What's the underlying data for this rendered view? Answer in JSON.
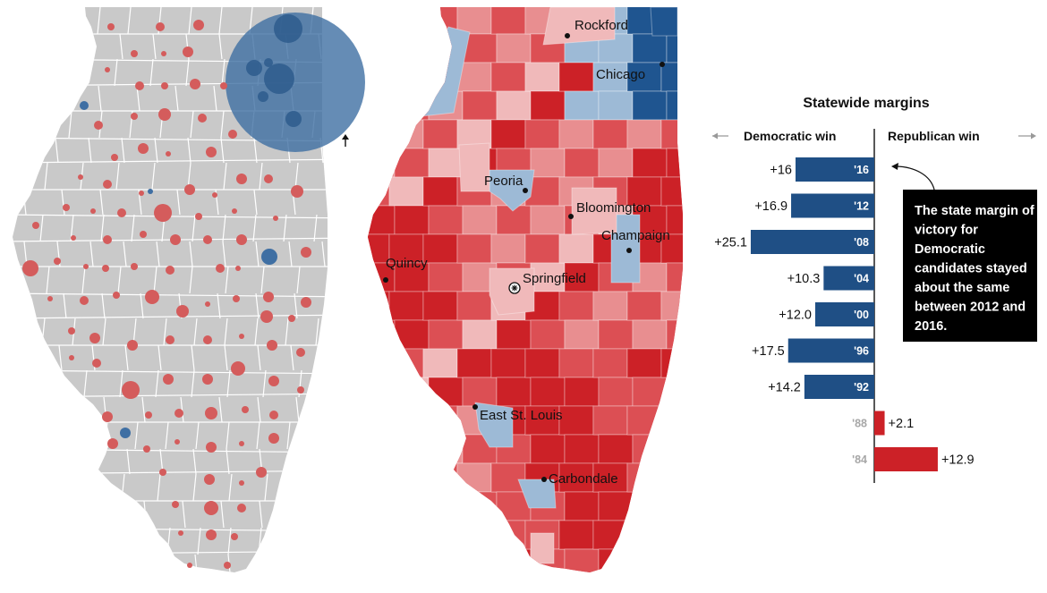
{
  "maps": {
    "bubble_map": {
      "county_fill": "#c9c9c9",
      "dem_color": "#3f6fa3",
      "rep_color": "#d45c5c"
    },
    "margin_map": {
      "shades": {
        "strong_rep": "#cc2127",
        "mid_rep": "#dc4f54",
        "light_rep": "#e88e90",
        "lightest_rep": "#f0b9ba",
        "light_dem": "#9dbad6",
        "strong_dem": "#1f5590"
      },
      "cities": [
        {
          "name": "Rockford",
          "capital": false
        },
        {
          "name": "Chicago",
          "capital": false
        },
        {
          "name": "Peoria",
          "capital": false
        },
        {
          "name": "Bloomington",
          "capital": false
        },
        {
          "name": "Champaign",
          "capital": false
        },
        {
          "name": "Quincy",
          "capital": false
        },
        {
          "name": "Springfield",
          "capital": true
        },
        {
          "name": "East St. Louis",
          "capital": false
        },
        {
          "name": "Carbondale",
          "capital": false
        }
      ]
    }
  },
  "chart_data": {
    "type": "bar",
    "title": "Statewide margins",
    "left_header": "Democratic win",
    "right_header": "Republican win",
    "categories": [
      "'16",
      "'12",
      "'08",
      "'04",
      "'00",
      "'96",
      "'92",
      "'88",
      "'84"
    ],
    "series": [
      {
        "values": [
          16,
          16.9,
          25.1,
          10.3,
          12.0,
          17.5,
          14.2,
          2.1,
          12.9
        ],
        "labels": [
          "+16",
          "+16.9",
          "+25.1",
          "+10.3",
          "+12.0",
          "+17.5",
          "+14.2",
          "+2.1",
          "+12.9"
        ],
        "winner": [
          "D",
          "D",
          "D",
          "D",
          "D",
          "D",
          "D",
          "R",
          "R"
        ]
      }
    ],
    "colors": {
      "D": "#1f4f85",
      "R": "#cc2127",
      "year_dem": "#ffffff",
      "year_rep": "#a7a7a7"
    },
    "annotation": "The state margin of victory for Democratic candidates stayed about the same between 2012 and 2016."
  }
}
